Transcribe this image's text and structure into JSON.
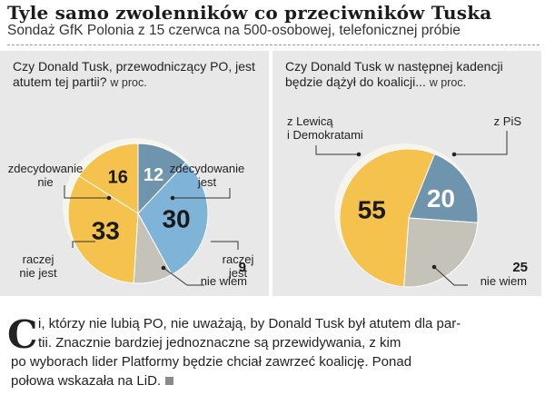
{
  "header": {
    "title": "Tyle samo zwolenników co przeciwników Tuska",
    "subtitle": "Sondaż GfK Polonia z 15 czerwca na 500-osobowej, telefonicznej próbie"
  },
  "colors": {
    "yellow": "#f4c24d",
    "blue_light": "#7fb3d8",
    "blue_dark": "#6f94ad",
    "gray": "#c5c2b9",
    "panel": "#e8e8e8"
  },
  "chart_data": [
    {
      "type": "pie",
      "question": "Czy Donald Tusk, przewodniczący PO, jest atutem tej partii?",
      "unit": "w proc.",
      "slices": [
        {
          "label": "zdecydowanie jest",
          "value": 12,
          "color": "#6f94ad"
        },
        {
          "label": "raczej jest",
          "value": 30,
          "color": "#7fb3d8"
        },
        {
          "label": "nie wiem",
          "value": 9,
          "color": "#c5c2b9"
        },
        {
          "label": "raczej nie jest",
          "value": 33,
          "color": "#f4c24d"
        },
        {
          "label": "zdecydowanie nie",
          "value": 16,
          "color": "#f4c24d"
        }
      ]
    },
    {
      "type": "pie",
      "question": "Czy Donald Tusk w następnej kadencji będzie dążył do koalicji...",
      "unit": "w proc.",
      "slices": [
        {
          "label": "z PiS",
          "value": 20,
          "color": "#6f94ad"
        },
        {
          "label": "nie wiem",
          "value": 25,
          "color": "#c5c2b9"
        },
        {
          "label": "z Lewicą i Demokratami",
          "value": 55,
          "color": "#f4c24d"
        }
      ]
    }
  ],
  "left_labels": {
    "zdecydowanie_nie": [
      "zdecydowanie",
      "nie"
    ],
    "zdecydowanie_jest": [
      "zdecydowanie",
      "jest"
    ],
    "raczej_nie_jest": [
      "raczej",
      "nie jest"
    ],
    "raczej_jest": [
      "raczej",
      "jest"
    ],
    "nie_wiem": "nie wiem",
    "nie_wiem_value": "9"
  },
  "right_labels": {
    "lewica": [
      "z Lewicą",
      "i Demokratami"
    ],
    "pis": "z PiS",
    "nie_wiem": "nie wiem",
    "nie_wiem_value": "25"
  },
  "article": {
    "dropcap": "C",
    "lines": [
      "i, którzy nie lubią PO, nie uważają, by Donald Tusk był atutem dla par-",
      "tii. Znacznie bardziej jednoznaczne są przewidywania, z kim",
      "po wyborach lider Platformy będzie chciał zawrzeć koalicję. Ponad",
      "połowa wskazała na LiD."
    ]
  }
}
